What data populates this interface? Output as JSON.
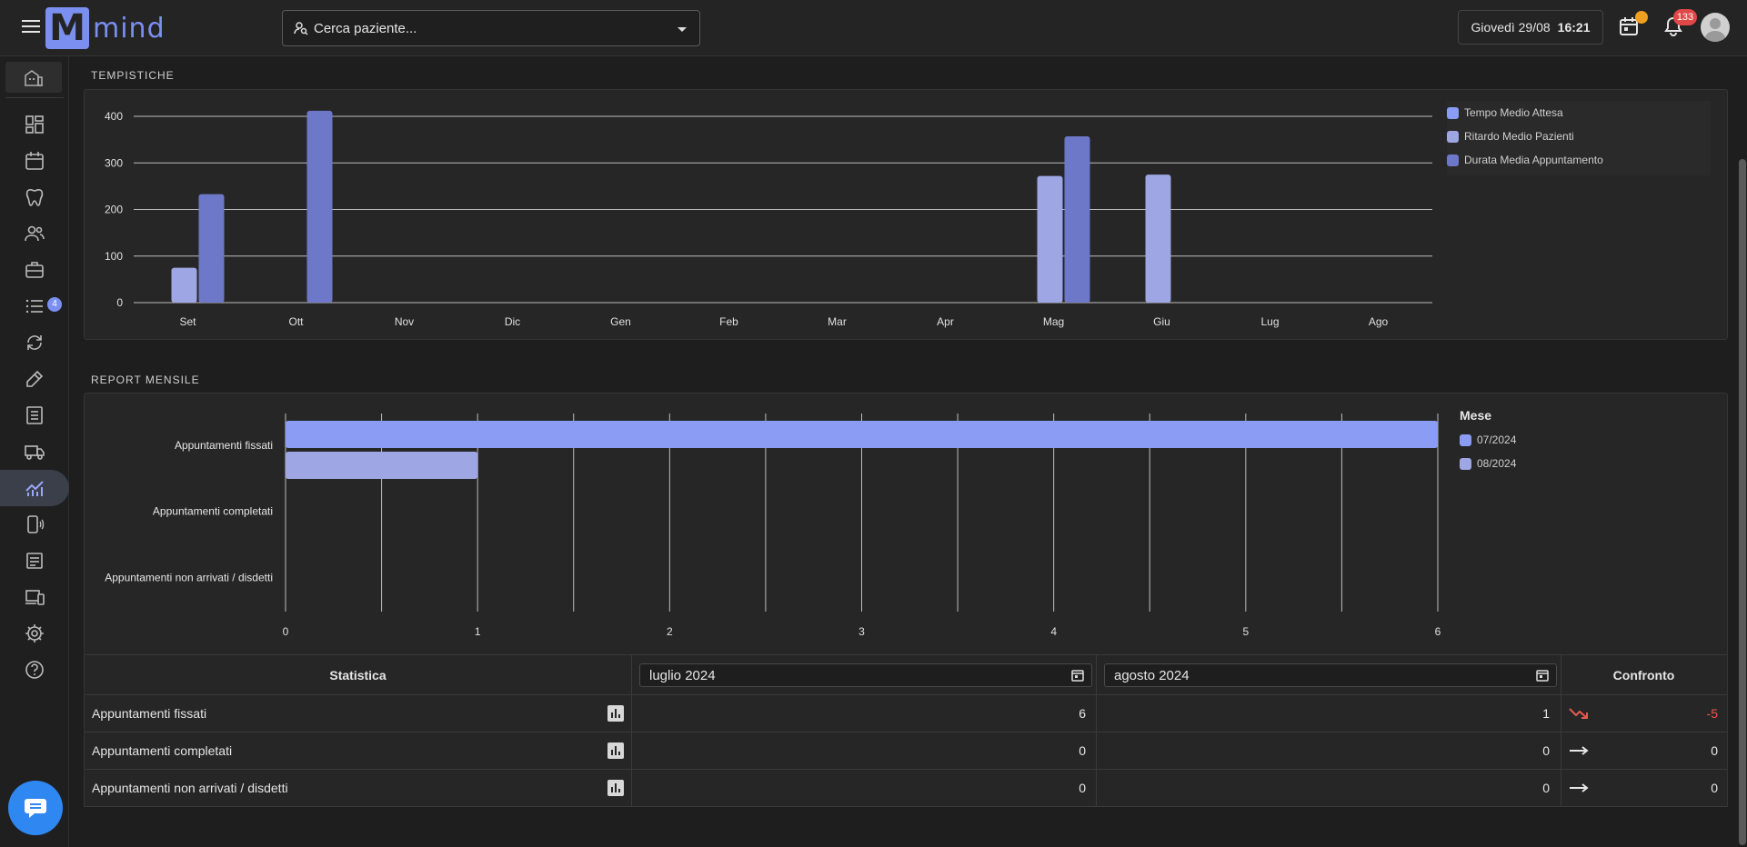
{
  "app": {
    "logo_text": "mind"
  },
  "search": {
    "placeholder": "Cerca paziente..."
  },
  "header": {
    "day": "Giovedì 29/08",
    "time": "16:21",
    "notifications_count": "133"
  },
  "sidebar": {
    "tasks_badge": "4"
  },
  "tempistiche": {
    "title": "TEMPISTICHE",
    "legend": [
      "Tempo Medio Attesa",
      "Ritardo Medio Pazienti",
      "Durata Media Appuntamento"
    ]
  },
  "report": {
    "title": "REPORT MENSILE",
    "legend_title": "Mese",
    "legend": [
      "07/2024",
      "08/2024"
    ]
  },
  "table": {
    "headers": {
      "stat": "Statistica",
      "month1": "luglio 2024",
      "month2": "agosto 2024",
      "compare": "Confronto"
    },
    "rows": [
      {
        "label": "Appuntamenti fissati",
        "m1": "6",
        "m2": "1",
        "diff": "-5",
        "trend": "down"
      },
      {
        "label": "Appuntamenti completati",
        "m1": "0",
        "m2": "0",
        "diff": "0",
        "trend": "flat"
      },
      {
        "label": "Appuntamenti non arrivati / disdetti",
        "m1": "0",
        "m2": "0",
        "diff": "0",
        "trend": "flat"
      }
    ]
  },
  "colors": {
    "series1": "#8b9cf5",
    "series2": "#9ea6e3",
    "series3": "#6e78c8",
    "accent": "#7b8ff0",
    "negative": "#e85a4f"
  },
  "chart_data": [
    {
      "type": "bar",
      "title": "",
      "categories": [
        "Set",
        "Ott",
        "Nov",
        "Dic",
        "Gen",
        "Feb",
        "Mar",
        "Apr",
        "Mag",
        "Giu",
        "Lug",
        "Ago"
      ],
      "series": [
        {
          "name": "Tempo Medio Attesa",
          "values": [
            0,
            0,
            0,
            0,
            0,
            0,
            0,
            0,
            0,
            0,
            0,
            0
          ]
        },
        {
          "name": "Ritardo Medio Pazienti",
          "values": [
            75,
            0,
            0,
            0,
            0,
            0,
            0,
            0,
            272,
            275,
            0,
            0
          ]
        },
        {
          "name": "Durata Media Appuntamento",
          "values": [
            233,
            412,
            0,
            0,
            0,
            0,
            0,
            0,
            357,
            0,
            0,
            0
          ]
        }
      ],
      "yticks": [
        0,
        100,
        200,
        300,
        400
      ],
      "ylim": [
        0,
        410
      ],
      "grid": true,
      "legend_position": "right"
    },
    {
      "type": "bar",
      "orientation": "horizontal",
      "title": "",
      "categories": [
        "Appuntamenti fissati",
        "Appuntamenti completati",
        "Appuntamenti non arrivati / disdetti"
      ],
      "series": [
        {
          "name": "07/2024",
          "values": [
            6,
            0,
            0
          ]
        },
        {
          "name": "08/2024",
          "values": [
            1,
            0,
            0
          ]
        }
      ],
      "xticks": [
        0,
        1,
        2,
        3,
        4,
        5,
        6
      ],
      "xlim": [
        0,
        6
      ],
      "grid": true,
      "legend_position": "right"
    }
  ]
}
